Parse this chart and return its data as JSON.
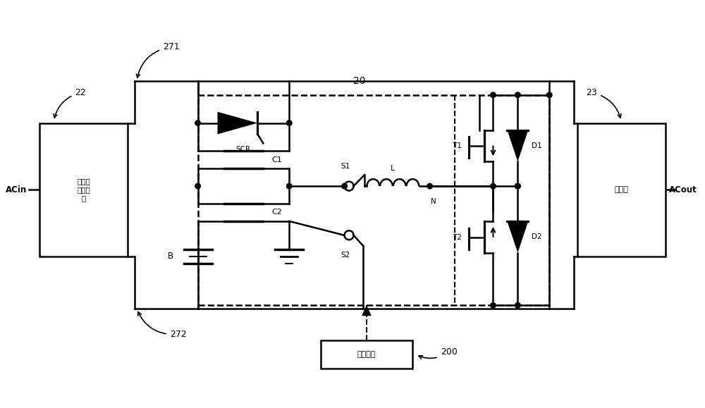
{
  "fig_width": 10.0,
  "fig_height": 5.79,
  "labels": {
    "ACin": "ACin",
    "ACout": "ACout",
    "rect_box": "整流升\n压变换\n器",
    "inv_box": "逆变器",
    "ctrl_box": "控制装置",
    "SCR": "SCR",
    "C1": "C1",
    "C2": "C2",
    "B": "B",
    "S1": "S1",
    "S2": "S2",
    "L": "L",
    "T1": "T1",
    "T2": "T2",
    "D1": "D1",
    "D2": "D2",
    "N": "N",
    "num_20": "20",
    "num_22": "22",
    "num_23": "23",
    "num_200": "200",
    "num_271": "271",
    "num_272": "272"
  },
  "lw": 1.8
}
